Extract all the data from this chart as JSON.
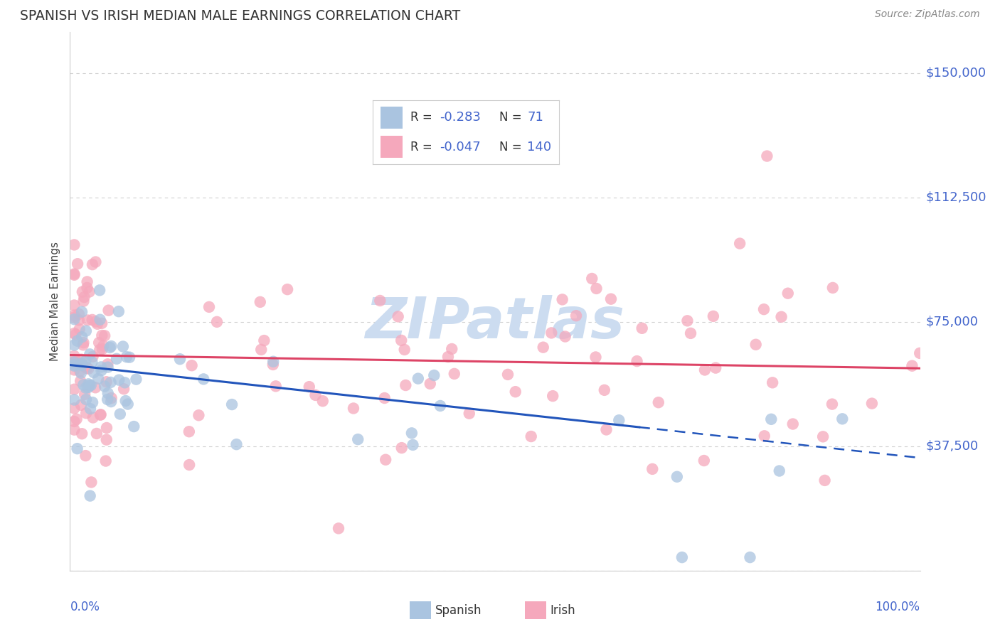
{
  "title": "SPANISH VS IRISH MEDIAN MALE EARNINGS CORRELATION CHART",
  "source": "Source: ZipAtlas.com",
  "ylabel": "Median Male Earnings",
  "yticks": [
    0,
    37500,
    75000,
    112500,
    150000
  ],
  "ytick_labels": [
    "",
    "$37,500",
    "$75,000",
    "$112,500",
    "$150,000"
  ],
  "xlim": [
    0,
    1
  ],
  "ylim": [
    0,
    162500
  ],
  "spanish_R": -0.283,
  "spanish_N": 71,
  "irish_R": -0.047,
  "irish_N": 140,
  "spanish_color": "#aac4e0",
  "irish_color": "#f5a8bc",
  "spanish_line_color": "#2255bb",
  "irish_line_color": "#dd4466",
  "ytick_color": "#4466cc",
  "axis_label_color": "#4466cc",
  "watermark_text": "ZIPatlas",
  "watermark_color": "#ccdcf0",
  "legend_text_color": "#333333",
  "legend_value_color": "#4466cc",
  "title_color": "#333333",
  "source_color": "#888888",
  "grid_color": "#cccccc",
  "spine_color": "#cccccc"
}
